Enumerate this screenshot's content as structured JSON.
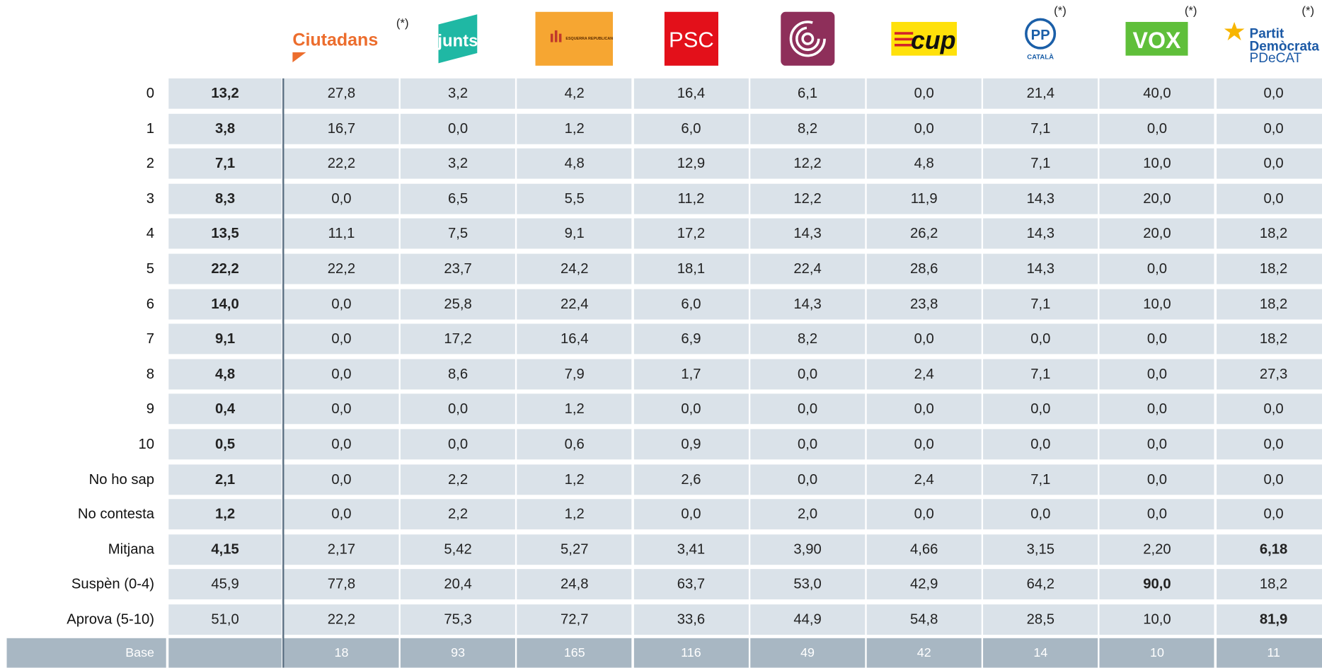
{
  "header": {
    "parties": [
      {
        "name": "Ciutadans",
        "note": "(*)"
      },
      {
        "name": "junts"
      },
      {
        "name": "ESQUERRA REPUBLICANA"
      },
      {
        "name": "PSC"
      },
      {},
      {
        "name": "cup"
      },
      {
        "name": "PP",
        "sub": "CATALÀ",
        "note": "(*)"
      },
      {
        "name": "VOX",
        "note": "(*)"
      },
      {
        "name": "Partit Demòcrata",
        "sub": "PDeCAT",
        "note": "(*)"
      }
    ]
  },
  "table": {
    "rows": [
      {
        "label": "0",
        "values": [
          "13,2",
          "27,8",
          "3,2",
          "4,2",
          "16,4",
          "6,1",
          "0,0",
          "21,4",
          "40,0",
          "0,0"
        ]
      },
      {
        "label": "1",
        "values": [
          "3,8",
          "16,7",
          "0,0",
          "1,2",
          "6,0",
          "8,2",
          "0,0",
          "7,1",
          "0,0",
          "0,0"
        ]
      },
      {
        "label": "2",
        "values": [
          "7,1",
          "22,2",
          "3,2",
          "4,8",
          "12,9",
          "12,2",
          "4,8",
          "7,1",
          "10,0",
          "0,0"
        ]
      },
      {
        "label": "3",
        "values": [
          "8,3",
          "0,0",
          "6,5",
          "5,5",
          "11,2",
          "12,2",
          "11,9",
          "14,3",
          "20,0",
          "0,0"
        ]
      },
      {
        "label": "4",
        "values": [
          "13,5",
          "11,1",
          "7,5",
          "9,1",
          "17,2",
          "14,3",
          "26,2",
          "14,3",
          "20,0",
          "18,2"
        ]
      },
      {
        "label": "5",
        "values": [
          "22,2",
          "22,2",
          "23,7",
          "24,2",
          "18,1",
          "22,4",
          "28,6",
          "14,3",
          "0,0",
          "18,2"
        ]
      },
      {
        "label": "6",
        "values": [
          "14,0",
          "0,0",
          "25,8",
          "22,4",
          "6,0",
          "14,3",
          "23,8",
          "7,1",
          "10,0",
          "18,2"
        ]
      },
      {
        "label": "7",
        "values": [
          "9,1",
          "0,0",
          "17,2",
          "16,4",
          "6,9",
          "8,2",
          "0,0",
          "0,0",
          "0,0",
          "18,2"
        ]
      },
      {
        "label": "8",
        "values": [
          "4,8",
          "0,0",
          "8,6",
          "7,9",
          "1,7",
          "0,0",
          "2,4",
          "7,1",
          "0,0",
          "27,3"
        ]
      },
      {
        "label": "9",
        "values": [
          "0,4",
          "0,0",
          "0,0",
          "1,2",
          "0,0",
          "0,0",
          "0,0",
          "0,0",
          "0,0",
          "0,0"
        ]
      },
      {
        "label": "10",
        "values": [
          "0,5",
          "0,0",
          "0,0",
          "0,6",
          "0,9",
          "0,0",
          "0,0",
          "0,0",
          "0,0",
          "0,0"
        ]
      },
      {
        "label": "No ho sap",
        "values": [
          "2,1",
          "0,0",
          "2,2",
          "1,2",
          "2,6",
          "0,0",
          "2,4",
          "7,1",
          "0,0",
          "0,0"
        ]
      },
      {
        "label": "No contesta",
        "values": [
          "1,2",
          "0,0",
          "2,2",
          "1,2",
          "0,0",
          "2,0",
          "0,0",
          "0,0",
          "0,0",
          "0,0"
        ]
      },
      {
        "label": "Mitjana",
        "values": [
          "4,15",
          "2,17",
          "5,42",
          "5,27",
          "3,41",
          "3,90",
          "4,66",
          "3,15",
          "2,20",
          "6,18"
        ]
      },
      {
        "label": "Suspèn (0-4)",
        "values": [
          "45,9",
          "77,8",
          "20,4",
          "24,8",
          "63,7",
          "53,0",
          "42,9",
          "64,2",
          "90,0",
          "18,2"
        ]
      },
      {
        "label": "Aprova (5-10)",
        "values": [
          "51,0",
          "22,2",
          "75,3",
          "72,7",
          "33,6",
          "44,9",
          "54,8",
          "28,5",
          "10,0",
          "81,9"
        ]
      }
    ],
    "base": {
      "label": "Base",
      "values": [
        "18",
        "93",
        "165",
        "116",
        "49",
        "42",
        "14",
        "10",
        "11"
      ]
    }
  }
}
